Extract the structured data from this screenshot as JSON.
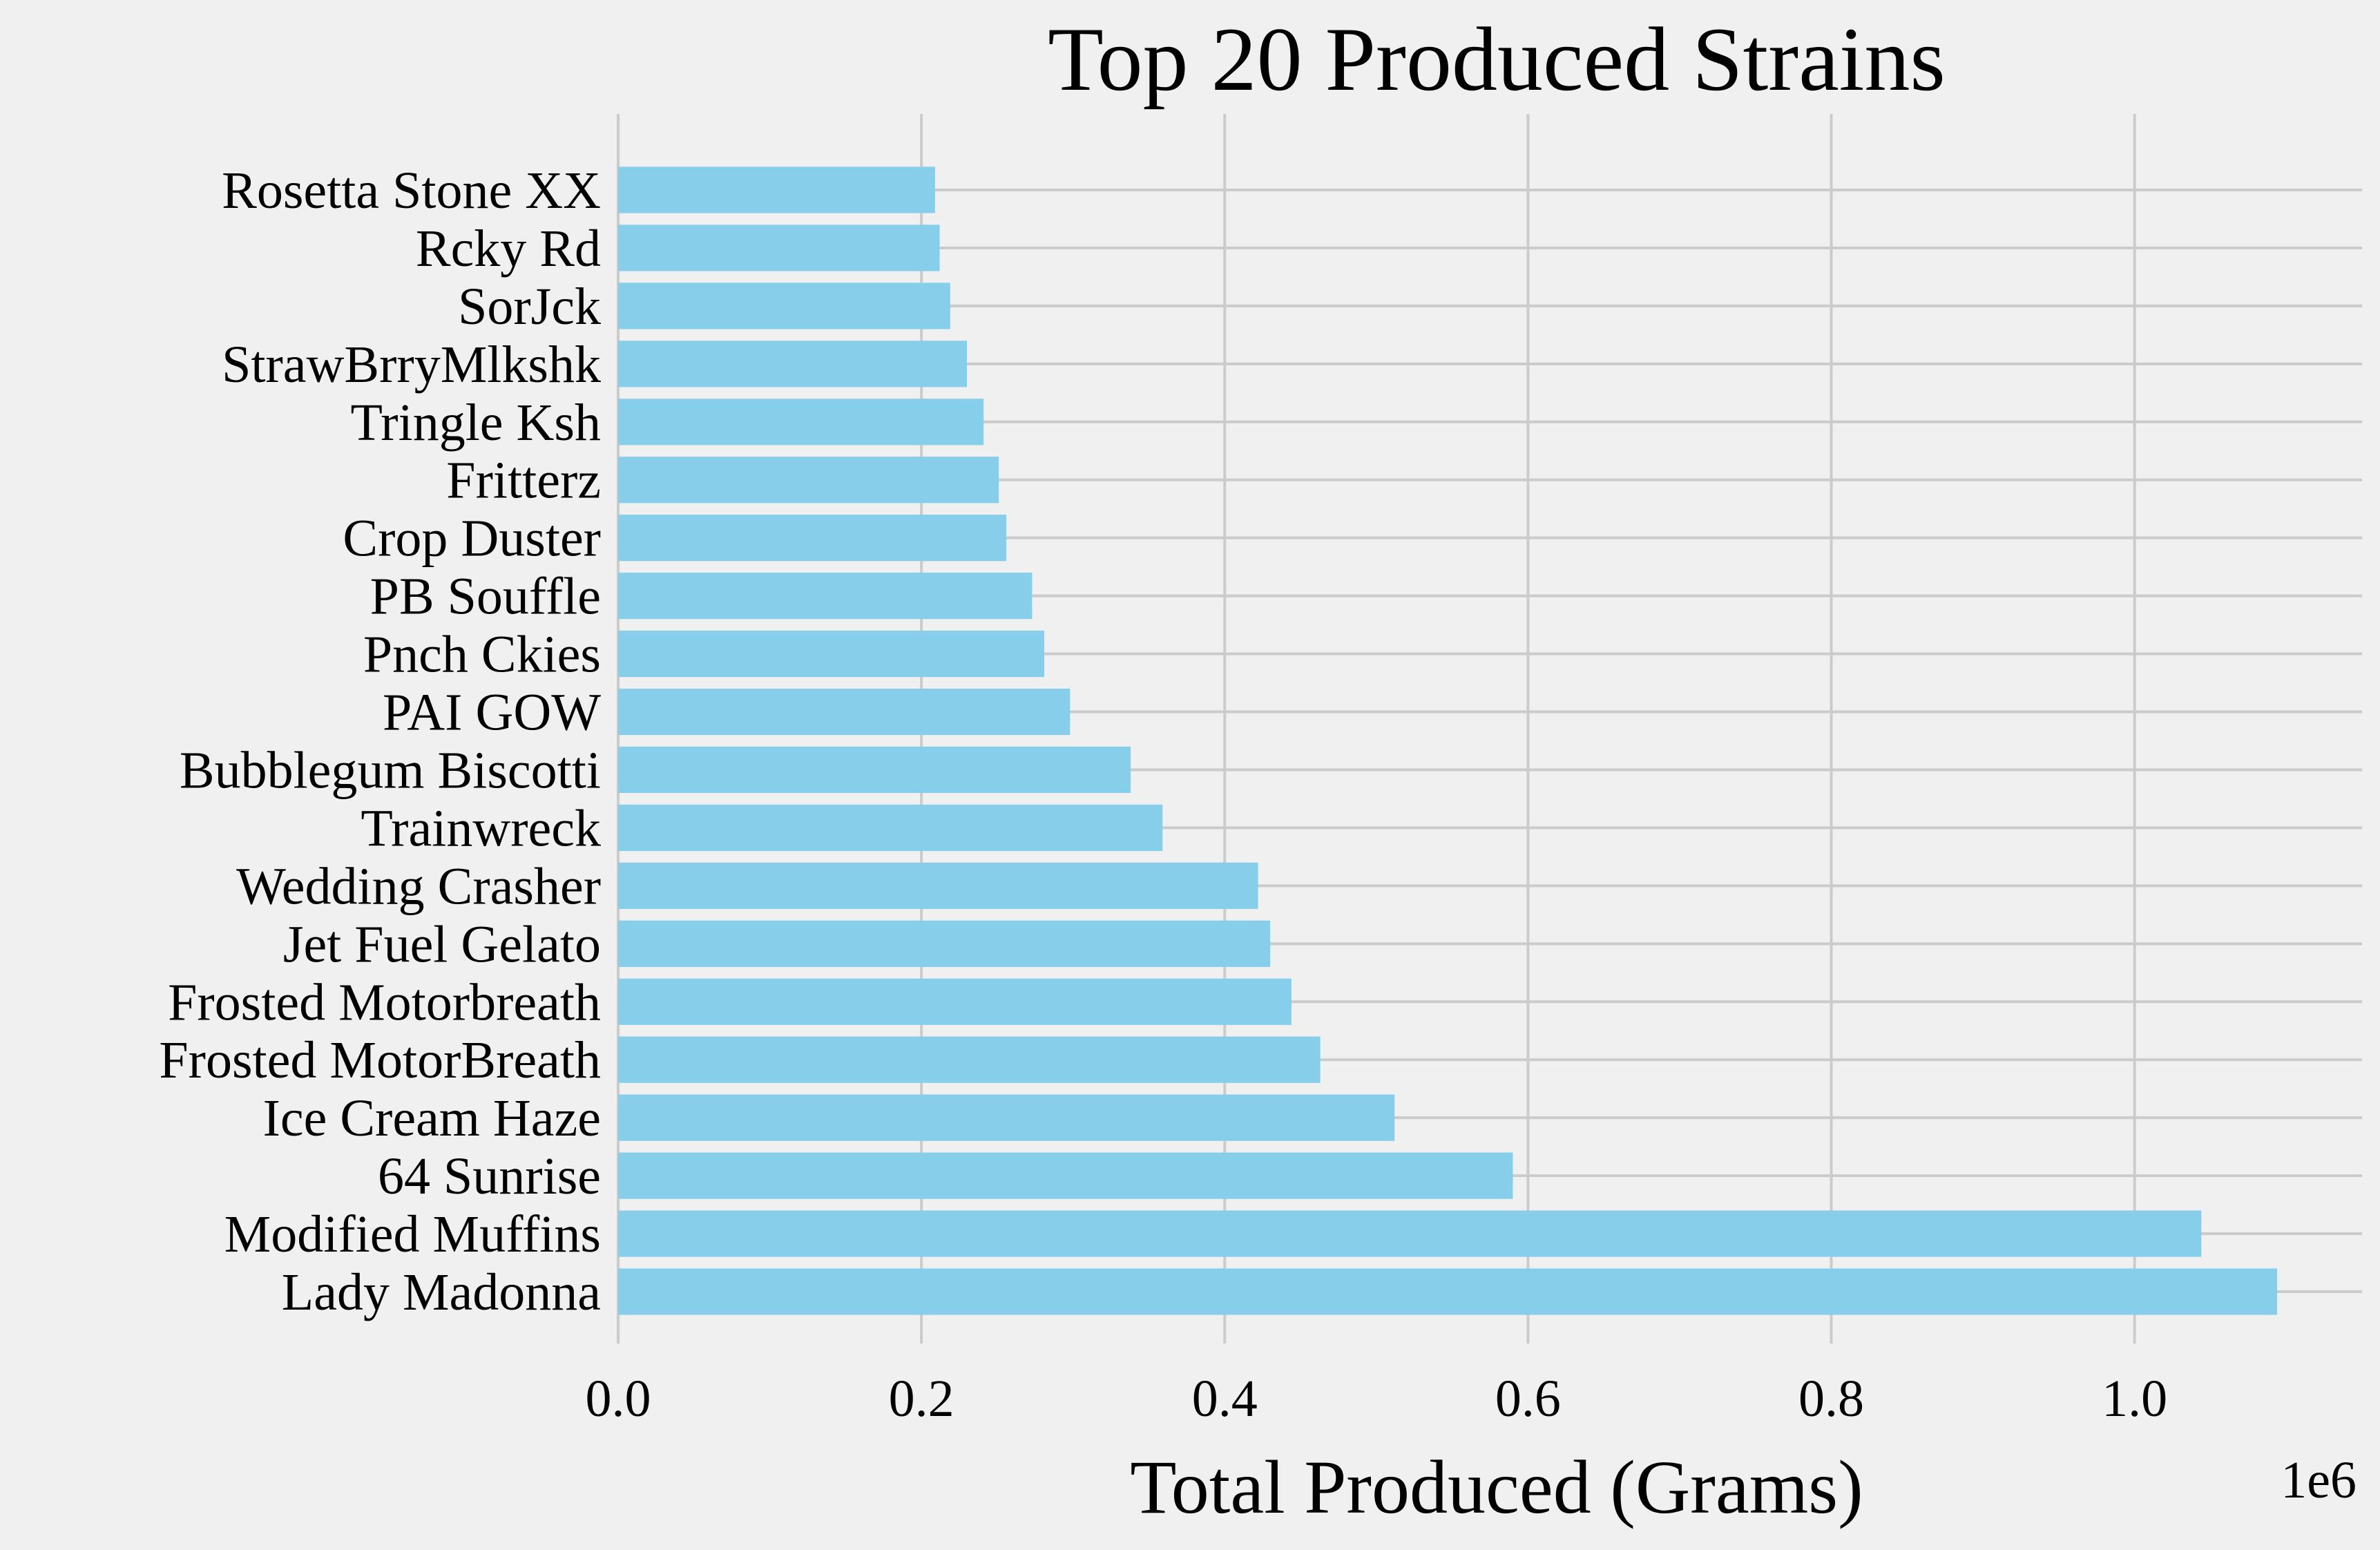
{
  "chart_data": {
    "type": "bar",
    "orientation": "horizontal",
    "title": "Top 20 Produced Strains",
    "xlabel": "Total Produced (Grams)",
    "ylabel": "",
    "x_offset_label": "1e6",
    "xlim": [
      0,
      1.15
    ],
    "xticks": [
      "0.0",
      "0.2",
      "0.4",
      "0.6",
      "0.8",
      "1.0"
    ],
    "grid": true,
    "bar_color": "#87ceeb",
    "background_color": "#f0f0f0",
    "grid_color": "#cbcbcb",
    "categories": [
      "Lady Madonna",
      "Modified Muffins",
      "64 Sunrise",
      "Ice Cream Haze",
      "Frosted MotorBreath",
      "Frosted Motorbreath",
      "Jet Fuel Gelato",
      "Wedding Crasher",
      "Trainwreck",
      "Bubblegum Biscotti",
      "PAI GOW",
      "Pnch Ckies",
      "PB Souffle",
      "Crop Duster",
      "Fritterz",
      "Tringle Ksh",
      "StrawBrryMlkshk",
      "SorJck",
      "Rcky Rd",
      "Rosetta Stone XX"
    ],
    "values": [
      1.094,
      1.044,
      0.59,
      0.512,
      0.463,
      0.444,
      0.43,
      0.422,
      0.359,
      0.338,
      0.298,
      0.281,
      0.273,
      0.256,
      0.251,
      0.241,
      0.23,
      0.219,
      0.212,
      0.209
    ]
  }
}
